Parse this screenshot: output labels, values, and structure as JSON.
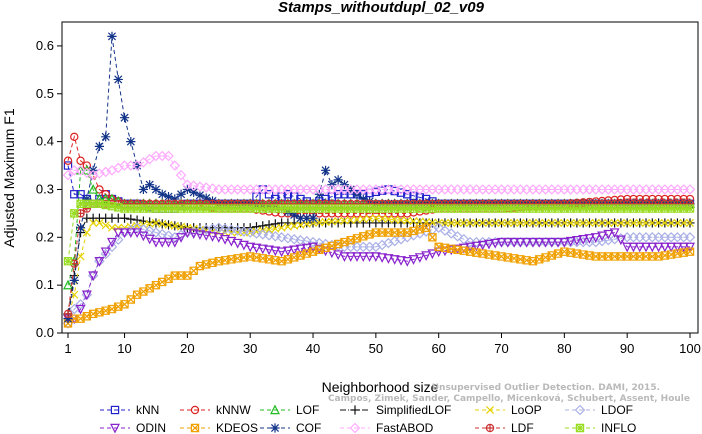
{
  "chart_data": {
    "type": "line",
    "title": "Stamps_withoutdupl_02_v09",
    "xlabel": "Neighborhood size",
    "ylabel": "Adjusted Maximum F1",
    "xlim": [
      1,
      100
    ],
    "ylim": [
      0,
      0.65
    ],
    "x_ticks": [
      1,
      10,
      20,
      30,
      40,
      50,
      60,
      70,
      80,
      90,
      100
    ],
    "y_ticks": [
      0.0,
      0.1,
      0.2,
      0.3,
      0.4,
      0.5,
      0.6
    ],
    "x_tick_labels": [
      "1",
      "10",
      "20",
      "30",
      "40",
      "50",
      "60",
      "70",
      "80",
      "90",
      "100"
    ],
    "y_tick_labels": [
      "0.0",
      "0.1",
      "0.2",
      "0.3",
      "0.4",
      "0.5",
      "0.6"
    ],
    "grid": false,
    "legend_position": "bottom",
    "watermark": [
      "Campos, Zimek, Sander, Campello, Micenková, Schubert, Assent, Houle",
      "Unsupervised Outlier Detection. DAMI, 2015."
    ],
    "series": [
      {
        "name": "kNN",
        "color": "#2222cc",
        "marker": "square",
        "dash": "4,3",
        "points": [
          [
            1,
            0.35
          ],
          [
            2,
            0.29
          ],
          [
            3,
            0.29
          ],
          [
            4,
            0.28
          ],
          [
            5,
            0.27
          ],
          [
            6,
            0.28
          ],
          [
            7,
            0.29
          ],
          [
            8,
            0.28
          ],
          [
            10,
            0.27
          ],
          [
            12,
            0.27
          ],
          [
            15,
            0.26
          ],
          [
            18,
            0.26
          ],
          [
            20,
            0.27
          ],
          [
            25,
            0.27
          ],
          [
            30,
            0.27
          ],
          [
            32,
            0.3
          ],
          [
            34,
            0.28
          ],
          [
            36,
            0.29
          ],
          [
            40,
            0.27
          ],
          [
            44,
            0.29
          ],
          [
            48,
            0.29
          ],
          [
            52,
            0.3
          ],
          [
            55,
            0.29
          ],
          [
            58,
            0.28
          ],
          [
            60,
            0.27
          ],
          [
            70,
            0.27
          ],
          [
            80,
            0.27
          ],
          [
            90,
            0.27
          ],
          [
            100,
            0.27
          ]
        ]
      },
      {
        "name": "kNNW",
        "color": "#dd2222",
        "marker": "circle",
        "dash": "4,3",
        "points": [
          [
            1,
            0.36
          ],
          [
            2,
            0.41
          ],
          [
            3,
            0.36
          ],
          [
            4,
            0.35
          ],
          [
            5,
            0.33
          ],
          [
            6,
            0.3
          ],
          [
            7,
            0.29
          ],
          [
            8,
            0.28
          ],
          [
            10,
            0.27
          ],
          [
            15,
            0.27
          ],
          [
            20,
            0.27
          ],
          [
            25,
            0.26
          ],
          [
            30,
            0.26
          ],
          [
            35,
            0.25
          ],
          [
            40,
            0.25
          ],
          [
            45,
            0.25
          ],
          [
            50,
            0.25
          ],
          [
            55,
            0.25
          ],
          [
            60,
            0.26
          ],
          [
            70,
            0.26
          ],
          [
            80,
            0.27
          ],
          [
            90,
            0.28
          ],
          [
            100,
            0.28
          ]
        ]
      },
      {
        "name": "LOF",
        "color": "#22bb22",
        "marker": "triangle-up",
        "dash": "4,3",
        "points": [
          [
            1,
            0.1
          ],
          [
            2,
            0.15
          ],
          [
            3,
            0.34
          ],
          [
            4,
            0.34
          ],
          [
            5,
            0.3
          ],
          [
            6,
            0.28
          ],
          [
            8,
            0.28
          ],
          [
            10,
            0.27
          ],
          [
            15,
            0.27
          ],
          [
            20,
            0.27
          ],
          [
            30,
            0.27
          ],
          [
            40,
            0.27
          ],
          [
            50,
            0.27
          ],
          [
            60,
            0.27
          ],
          [
            70,
            0.27
          ],
          [
            80,
            0.27
          ],
          [
            90,
            0.27
          ],
          [
            100,
            0.27
          ]
        ]
      },
      {
        "name": "SimplifiedLOF",
        "color": "#111111",
        "marker": "plus",
        "dash": "6,2,1,2",
        "points": [
          [
            1,
            0.04
          ],
          [
            2,
            0.12
          ],
          [
            3,
            0.21
          ],
          [
            4,
            0.24
          ],
          [
            5,
            0.24
          ],
          [
            6,
            0.24
          ],
          [
            8,
            0.24
          ],
          [
            10,
            0.24
          ],
          [
            15,
            0.23
          ],
          [
            20,
            0.22
          ],
          [
            25,
            0.22
          ],
          [
            30,
            0.22
          ],
          [
            35,
            0.23
          ],
          [
            40,
            0.23
          ],
          [
            45,
            0.23
          ],
          [
            50,
            0.23
          ],
          [
            55,
            0.23
          ],
          [
            60,
            0.23
          ],
          [
            70,
            0.23
          ],
          [
            80,
            0.23
          ],
          [
            90,
            0.23
          ],
          [
            100,
            0.23
          ]
        ]
      },
      {
        "name": "LoOP",
        "color": "#e6d200",
        "marker": "x",
        "dash": "4,3",
        "points": [
          [
            1,
            0.03
          ],
          [
            2,
            0.08
          ],
          [
            3,
            0.16
          ],
          [
            4,
            0.21
          ],
          [
            5,
            0.23
          ],
          [
            6,
            0.23
          ],
          [
            8,
            0.22
          ],
          [
            10,
            0.22
          ],
          [
            15,
            0.23
          ],
          [
            20,
            0.22
          ],
          [
            25,
            0.21
          ],
          [
            30,
            0.21
          ],
          [
            40,
            0.23
          ],
          [
            50,
            0.24
          ],
          [
            60,
            0.23
          ],
          [
            70,
            0.23
          ],
          [
            80,
            0.23
          ],
          [
            90,
            0.23
          ],
          [
            100,
            0.23
          ]
        ]
      },
      {
        "name": "LDOF",
        "color": "#aab0e6",
        "marker": "diamond",
        "dash": "4,3",
        "points": [
          [
            1,
            0.02
          ],
          [
            2,
            0.05
          ],
          [
            3,
            0.06
          ],
          [
            4,
            0.08
          ],
          [
            5,
            0.12
          ],
          [
            6,
            0.15
          ],
          [
            8,
            0.18
          ],
          [
            10,
            0.21
          ],
          [
            12,
            0.22
          ],
          [
            15,
            0.21
          ],
          [
            18,
            0.2
          ],
          [
            20,
            0.21
          ],
          [
            25,
            0.22
          ],
          [
            30,
            0.21
          ],
          [
            35,
            0.2
          ],
          [
            40,
            0.19
          ],
          [
            45,
            0.18
          ],
          [
            50,
            0.18
          ],
          [
            55,
            0.2
          ],
          [
            60,
            0.22
          ],
          [
            65,
            0.19
          ],
          [
            70,
            0.19
          ],
          [
            75,
            0.19
          ],
          [
            80,
            0.19
          ],
          [
            85,
            0.19
          ],
          [
            90,
            0.2
          ],
          [
            100,
            0.2
          ]
        ]
      },
      {
        "name": "ODIN",
        "color": "#8822cc",
        "marker": "triangle-down",
        "dash": "4,3",
        "points": [
          [
            1,
            0.03
          ],
          [
            2,
            0.03
          ],
          [
            3,
            0.05
          ],
          [
            4,
            0.08
          ],
          [
            5,
            0.12
          ],
          [
            6,
            0.15
          ],
          [
            7,
            0.17
          ],
          [
            8,
            0.19
          ],
          [
            9,
            0.21
          ],
          [
            10,
            0.21
          ],
          [
            12,
            0.21
          ],
          [
            15,
            0.19
          ],
          [
            18,
            0.19
          ],
          [
            20,
            0.21
          ],
          [
            25,
            0.2
          ],
          [
            30,
            0.18
          ],
          [
            35,
            0.17
          ],
          [
            40,
            0.18
          ],
          [
            45,
            0.16
          ],
          [
            50,
            0.16
          ],
          [
            55,
            0.15
          ],
          [
            60,
            0.17
          ],
          [
            65,
            0.18
          ],
          [
            70,
            0.19
          ],
          [
            75,
            0.19
          ],
          [
            80,
            0.19
          ],
          [
            85,
            0.2
          ],
          [
            88,
            0.21
          ],
          [
            90,
            0.18
          ],
          [
            95,
            0.18
          ],
          [
            100,
            0.18
          ]
        ]
      },
      {
        "name": "KDEOS",
        "color": "#f0a000",
        "marker": "square-x",
        "dash": "4,3",
        "points": [
          [
            1,
            0.02
          ],
          [
            2,
            0.03
          ],
          [
            3,
            0.03
          ],
          [
            5,
            0.04
          ],
          [
            8,
            0.05
          ],
          [
            10,
            0.06
          ],
          [
            12,
            0.08
          ],
          [
            15,
            0.1
          ],
          [
            18,
            0.12
          ],
          [
            20,
            0.12
          ],
          [
            22,
            0.14
          ],
          [
            25,
            0.15
          ],
          [
            30,
            0.16
          ],
          [
            35,
            0.15
          ],
          [
            40,
            0.17
          ],
          [
            45,
            0.19
          ],
          [
            50,
            0.21
          ],
          [
            55,
            0.21
          ],
          [
            58,
            0.22
          ],
          [
            60,
            0.18
          ],
          [
            65,
            0.17
          ],
          [
            70,
            0.16
          ],
          [
            75,
            0.15
          ],
          [
            80,
            0.17
          ],
          [
            85,
            0.16
          ],
          [
            90,
            0.16
          ],
          [
            95,
            0.16
          ],
          [
            100,
            0.17
          ]
        ]
      },
      {
        "name": "COF",
        "color": "#113388",
        "marker": "star",
        "dash": "4,3",
        "points": [
          [
            1,
            0.03
          ],
          [
            2,
            0.11
          ],
          [
            3,
            0.22
          ],
          [
            4,
            0.28
          ],
          [
            5,
            0.34
          ],
          [
            6,
            0.39
          ],
          [
            7,
            0.41
          ],
          [
            8,
            0.62
          ],
          [
            9,
            0.53
          ],
          [
            10,
            0.45
          ],
          [
            11,
            0.4
          ],
          [
            12,
            0.35
          ],
          [
            13,
            0.3
          ],
          [
            14,
            0.31
          ],
          [
            16,
            0.29
          ],
          [
            18,
            0.28
          ],
          [
            20,
            0.3
          ],
          [
            25,
            0.27
          ],
          [
            30,
            0.27
          ],
          [
            35,
            0.26
          ],
          [
            38,
            0.24
          ],
          [
            40,
            0.24
          ],
          [
            42,
            0.34
          ],
          [
            43,
            0.31
          ],
          [
            44,
            0.32
          ],
          [
            46,
            0.3
          ],
          [
            48,
            0.28
          ],
          [
            50,
            0.27
          ],
          [
            60,
            0.27
          ],
          [
            70,
            0.27
          ],
          [
            80,
            0.27
          ],
          [
            90,
            0.27
          ],
          [
            100,
            0.27
          ]
        ]
      },
      {
        "name": "FastABOD",
        "color": "#ffaaff",
        "marker": "diamond",
        "dash": "4,3",
        "points": [
          [
            1,
            0.33
          ],
          [
            2,
            0.34
          ],
          [
            3,
            0.34
          ],
          [
            5,
            0.33
          ],
          [
            8,
            0.34
          ],
          [
            10,
            0.35
          ],
          [
            12,
            0.35
          ],
          [
            15,
            0.37
          ],
          [
            17,
            0.37
          ],
          [
            20,
            0.31
          ],
          [
            25,
            0.3
          ],
          [
            30,
            0.3
          ],
          [
            40,
            0.3
          ],
          [
            50,
            0.3
          ],
          [
            60,
            0.3
          ],
          [
            70,
            0.3
          ],
          [
            80,
            0.3
          ],
          [
            90,
            0.3
          ],
          [
            100,
            0.3
          ]
        ]
      },
      {
        "name": "LDF",
        "color": "#cc3333",
        "marker": "circle-plus",
        "dash": "4,3",
        "points": [
          [
            1,
            0.04
          ],
          [
            3,
            0.25
          ],
          [
            5,
            0.27
          ],
          [
            10,
            0.27
          ],
          [
            20,
            0.27
          ],
          [
            30,
            0.27
          ],
          [
            40,
            0.27
          ],
          [
            50,
            0.27
          ],
          [
            60,
            0.27
          ],
          [
            70,
            0.27
          ],
          [
            80,
            0.27
          ],
          [
            90,
            0.27
          ],
          [
            100,
            0.27
          ]
        ]
      },
      {
        "name": "INFLO",
        "color": "#99dd22",
        "marker": "asterisk-box",
        "dash": "4,3",
        "points": [
          [
            1,
            0.15
          ],
          [
            2,
            0.25
          ],
          [
            3,
            0.27
          ],
          [
            4,
            0.27
          ],
          [
            6,
            0.27
          ],
          [
            10,
            0.26
          ],
          [
            20,
            0.26
          ],
          [
            30,
            0.26
          ],
          [
            40,
            0.26
          ],
          [
            50,
            0.26
          ],
          [
            60,
            0.26
          ],
          [
            70,
            0.26
          ],
          [
            80,
            0.26
          ],
          [
            90,
            0.26
          ],
          [
            100,
            0.26
          ]
        ]
      }
    ]
  }
}
